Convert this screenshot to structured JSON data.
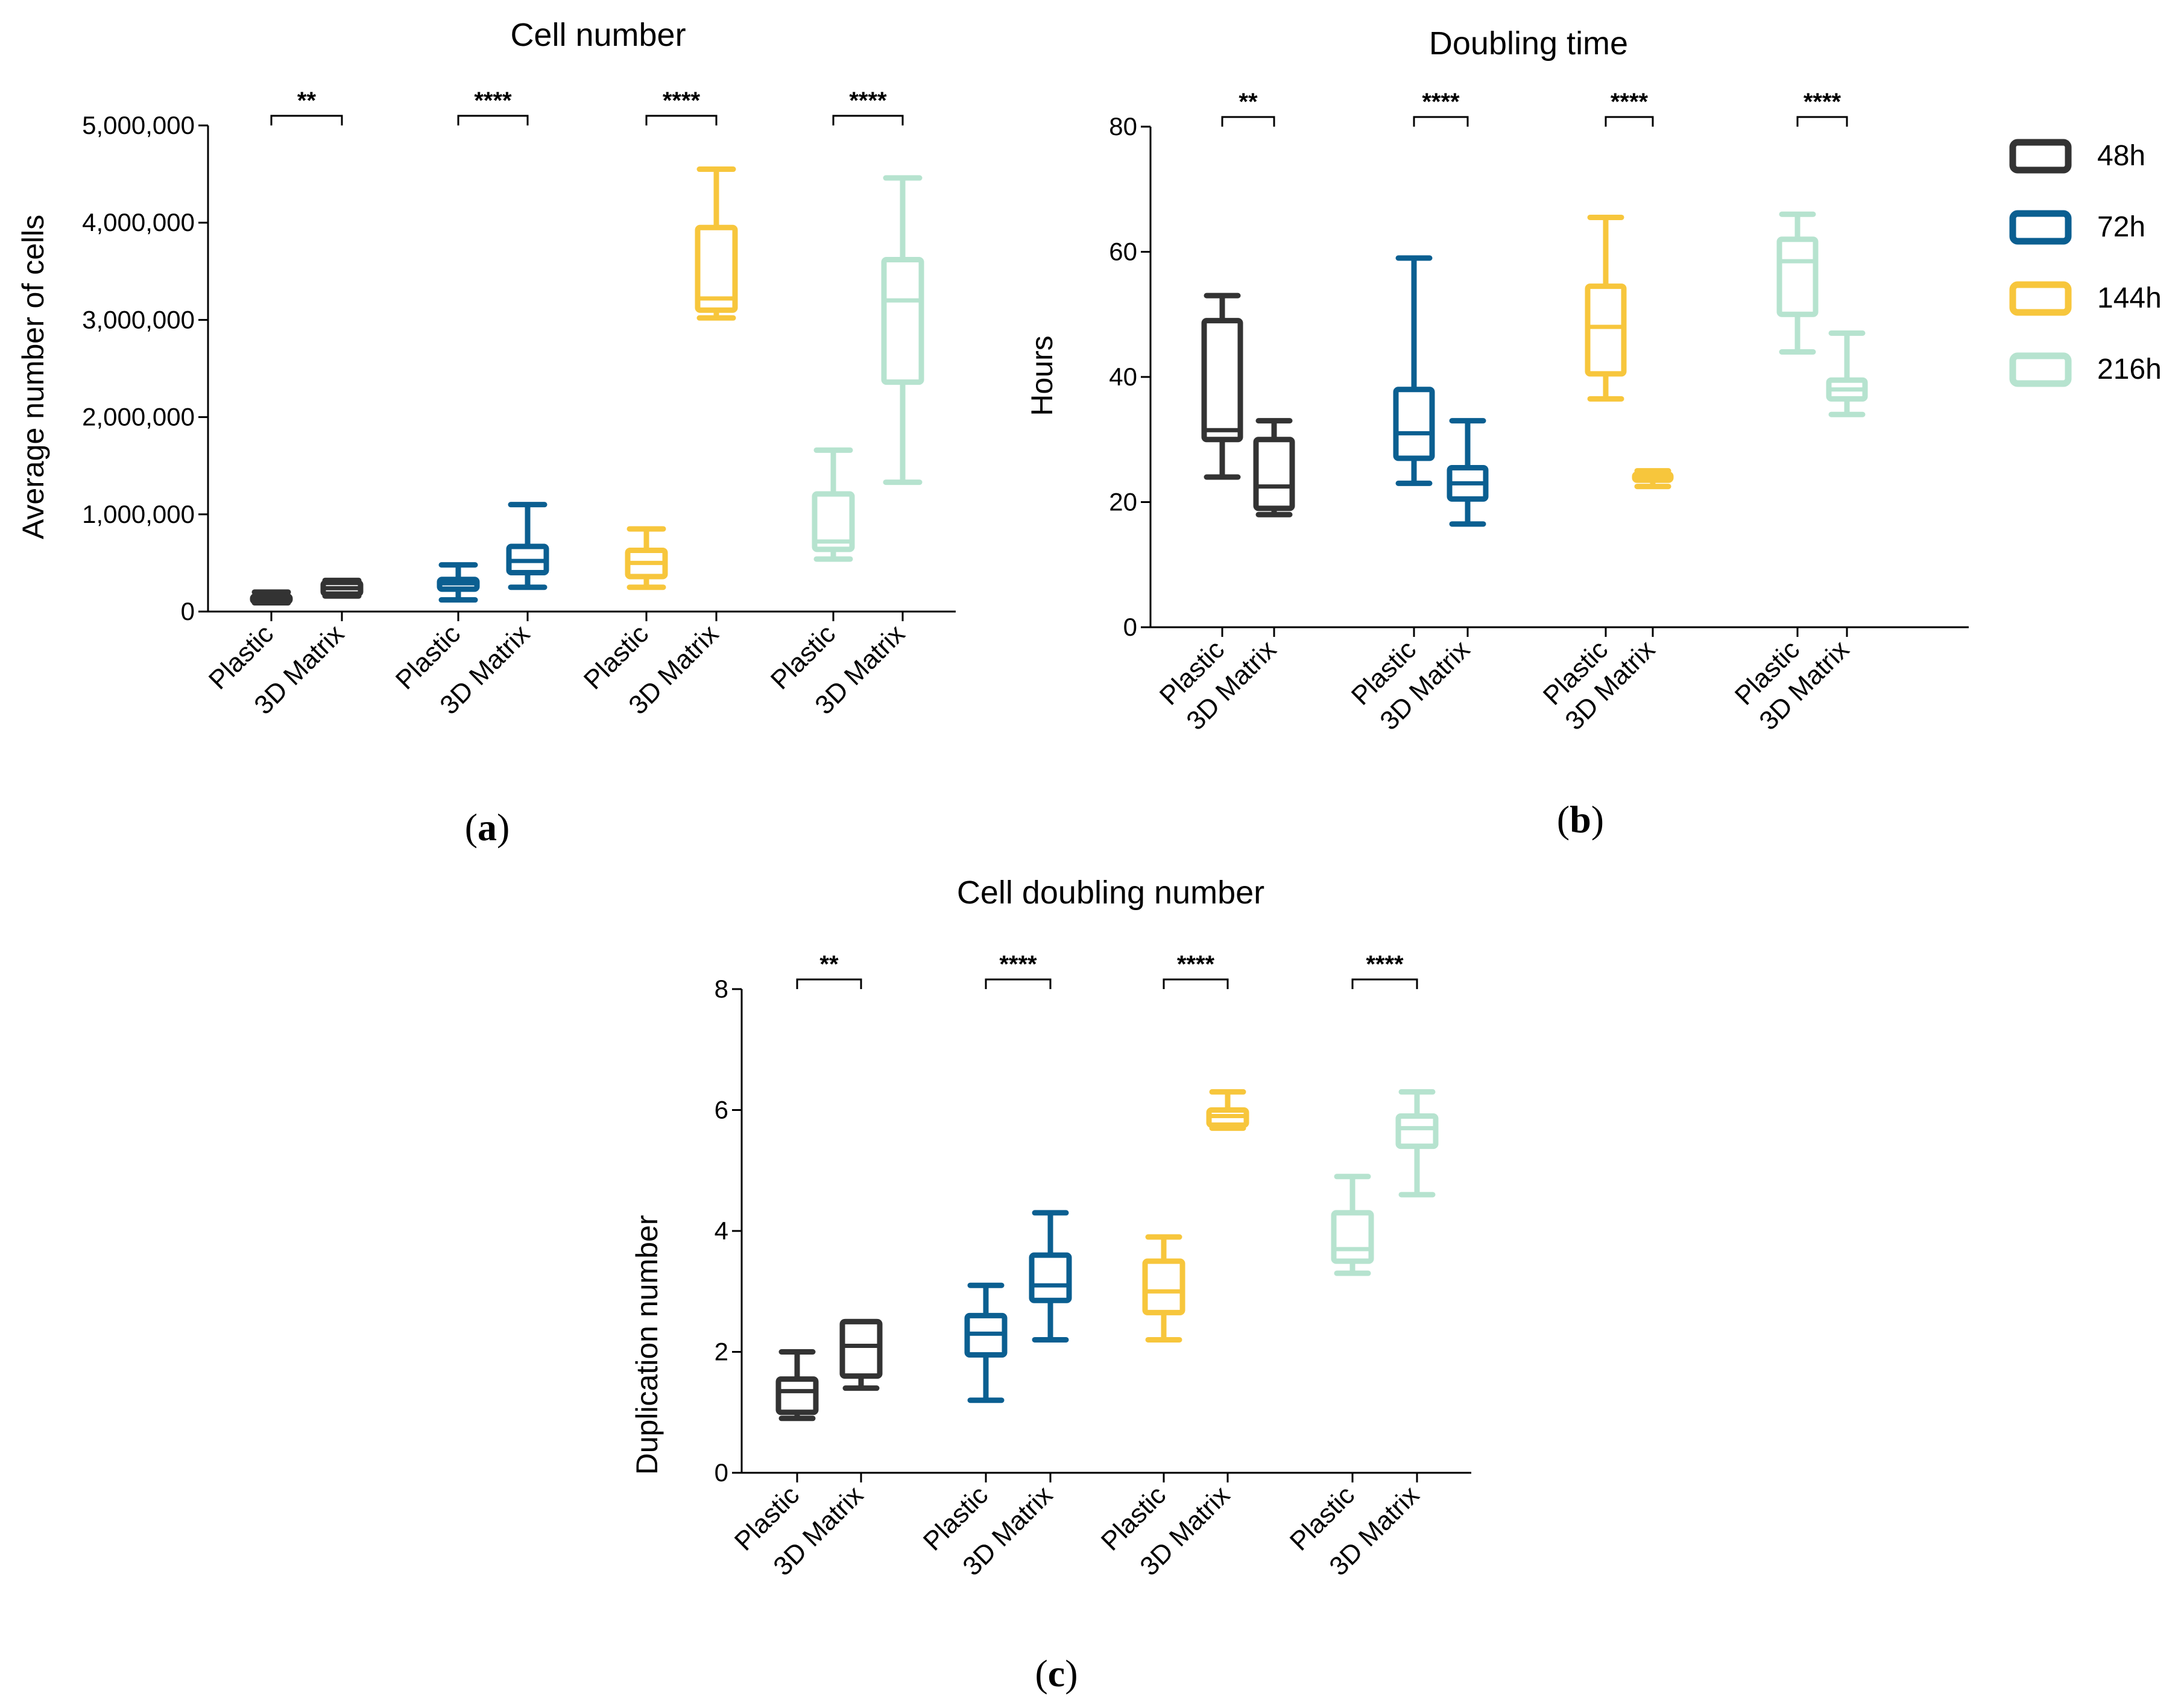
{
  "colors": {
    "48h": "#333333",
    "72h": "#0b5f91",
    "144h": "#f7c63c",
    "216h": "#b6e3cf"
  },
  "legend": {
    "items": [
      {
        "label": "48h",
        "color_key": "48h"
      },
      {
        "label": "72h",
        "color_key": "72h"
      },
      {
        "label": "144h",
        "color_key": "144h"
      },
      {
        "label": "216h",
        "color_key": "216h"
      }
    ]
  },
  "captions": {
    "a": {
      "open": "(",
      "letter": "a",
      "close": ")"
    },
    "b": {
      "open": "(",
      "letter": "b",
      "close": ")"
    },
    "c": {
      "open": "(",
      "letter": "c",
      "close": ")"
    }
  },
  "chart_data": [
    {
      "id": "a",
      "type": "box",
      "title": "Cell number",
      "xlabel": "",
      "ylabel": "Average number of cells",
      "ylim": [
        0,
        5000000
      ],
      "yticks": [
        0,
        1000000,
        2000000,
        3000000,
        4000000,
        5000000
      ],
      "ytick_labels": [
        "0",
        "1,000,000",
        "2,000,000",
        "3,000,000",
        "4,000,000",
        "5,000,000"
      ],
      "categories": [
        "Plastic",
        "3D Matrix"
      ],
      "groups": [
        {
          "series": "48h",
          "significance": "**",
          "boxes": [
            {
              "category": "Plastic",
              "min": 90000,
              "q1": 100000,
              "median": 130000,
              "q3": 160000,
              "max": 200000
            },
            {
              "category": "3D Matrix",
              "min": 160000,
              "q1": 180000,
              "median": 240000,
              "q3": 300000,
              "max": 320000
            }
          ]
        },
        {
          "series": "72h",
          "significance": "****",
          "boxes": [
            {
              "category": "Plastic",
              "min": 120000,
              "q1": 230000,
              "median": 290000,
              "q3": 330000,
              "max": 480000
            },
            {
              "category": "3D Matrix",
              "min": 250000,
              "q1": 400000,
              "median": 520000,
              "q3": 670000,
              "max": 1100000
            }
          ]
        },
        {
          "series": "144h",
          "significance": "****",
          "boxes": [
            {
              "category": "Plastic",
              "min": 250000,
              "q1": 360000,
              "median": 500000,
              "q3": 630000,
              "max": 850000
            },
            {
              "category": "3D Matrix",
              "min": 3020000,
              "q1": 3100000,
              "median": 3220000,
              "q3": 3950000,
              "max": 4550000
            }
          ]
        },
        {
          "series": "216h",
          "significance": "****",
          "boxes": [
            {
              "category": "Plastic",
              "min": 540000,
              "q1": 640000,
              "median": 720000,
              "q3": 1210000,
              "max": 1660000
            },
            {
              "category": "3D Matrix",
              "min": 1330000,
              "q1": 2360000,
              "median": 3200000,
              "q3": 3620000,
              "max": 4460000
            }
          ]
        }
      ]
    },
    {
      "id": "b",
      "type": "box",
      "title": "Doubling time",
      "xlabel": "",
      "ylabel": "Hours",
      "ylim": [
        0,
        80
      ],
      "yticks": [
        0,
        20,
        40,
        60,
        80
      ],
      "ytick_labels": [
        "0",
        "20",
        "40",
        "60",
        "80"
      ],
      "categories": [
        "Plastic",
        "3D Matrix"
      ],
      "groups": [
        {
          "series": "48h",
          "significance": "**",
          "boxes": [
            {
              "category": "Plastic",
              "min": 24,
              "q1": 30,
              "median": 31.5,
              "q3": 49,
              "max": 53
            },
            {
              "category": "3D Matrix",
              "min": 18,
              "q1": 19,
              "median": 22.5,
              "q3": 30,
              "max": 33
            }
          ]
        },
        {
          "series": "72h",
          "significance": "****",
          "boxes": [
            {
              "category": "Plastic",
              "min": 23,
              "q1": 27,
              "median": 31,
              "q3": 38,
              "max": 59
            },
            {
              "category": "3D Matrix",
              "min": 16.5,
              "q1": 20.5,
              "median": 23,
              "q3": 25.5,
              "max": 33
            }
          ]
        },
        {
          "series": "144h",
          "significance": "****",
          "boxes": [
            {
              "category": "Plastic",
              "min": 36.5,
              "q1": 40.5,
              "median": 48,
              "q3": 54.5,
              "max": 65.5
            },
            {
              "category": "3D Matrix",
              "min": 22.5,
              "q1": 23.5,
              "median": 24,
              "q3": 24.5,
              "max": 25
            }
          ]
        },
        {
          "series": "216h",
          "significance": "****",
          "boxes": [
            {
              "category": "Plastic",
              "min": 44,
              "q1": 50,
              "median": 58.5,
              "q3": 62,
              "max": 66
            },
            {
              "category": "3D Matrix",
              "min": 34,
              "q1": 36.5,
              "median": 38,
              "q3": 39.5,
              "max": 47
            }
          ]
        }
      ]
    },
    {
      "id": "c",
      "type": "box",
      "title": "Cell doubling number",
      "xlabel": "",
      "ylabel": "Duplication number",
      "ylim": [
        0,
        8
      ],
      "yticks": [
        0,
        2,
        4,
        6,
        8
      ],
      "ytick_labels": [
        "0",
        "2",
        "4",
        "6",
        "8"
      ],
      "categories": [
        "Plastic",
        "3D Matrix"
      ],
      "groups": [
        {
          "series": "48h",
          "significance": "**",
          "boxes": [
            {
              "category": "Plastic",
              "min": 0.9,
              "q1": 1.0,
              "median": 1.35,
              "q3": 1.55,
              "max": 2.0
            },
            {
              "category": "3D Matrix",
              "min": 1.4,
              "q1": 1.6,
              "median": 2.1,
              "q3": 2.5,
              "max": 2.5
            }
          ]
        },
        {
          "series": "72h",
          "significance": "****",
          "boxes": [
            {
              "category": "Plastic",
              "min": 1.2,
              "q1": 1.95,
              "median": 2.3,
              "q3": 2.6,
              "max": 3.1
            },
            {
              "category": "3D Matrix",
              "min": 2.2,
              "q1": 2.85,
              "median": 3.1,
              "q3": 3.6,
              "max": 4.3
            }
          ]
        },
        {
          "series": "144h",
          "significance": "****",
          "boxes": [
            {
              "category": "Plastic",
              "min": 2.2,
              "q1": 2.65,
              "median": 3.0,
              "q3": 3.5,
              "max": 3.9
            },
            {
              "category": "3D Matrix",
              "min": 5.7,
              "q1": 5.75,
              "median": 5.9,
              "q3": 6.0,
              "max": 6.3
            }
          ]
        },
        {
          "series": "216h",
          "significance": "****",
          "boxes": [
            {
              "category": "Plastic",
              "min": 3.3,
              "q1": 3.5,
              "median": 3.7,
              "q3": 4.3,
              "max": 4.9
            },
            {
              "category": "3D Matrix",
              "min": 4.6,
              "q1": 5.4,
              "median": 5.7,
              "q3": 5.9,
              "max": 6.3
            }
          ]
        }
      ]
    }
  ]
}
